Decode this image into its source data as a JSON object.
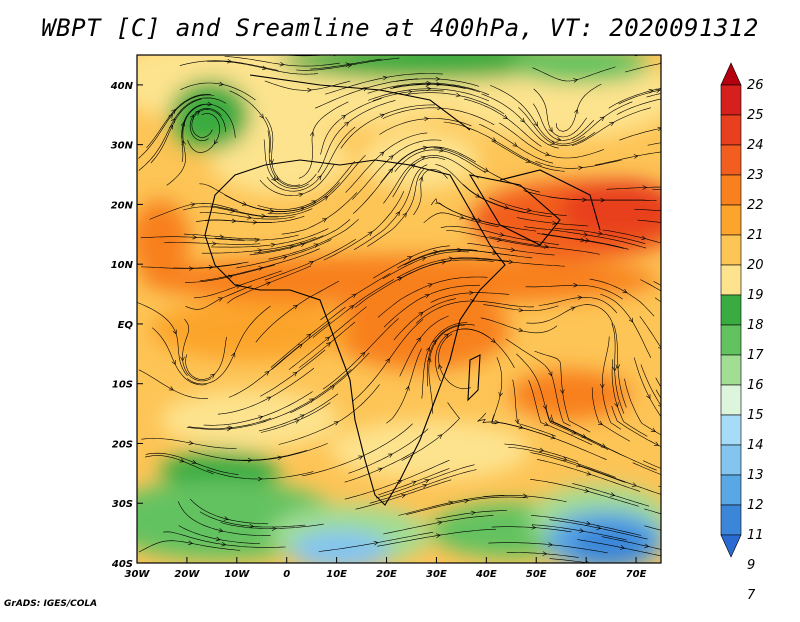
{
  "title": "WBPT [C] and Sreamline at 400hPa, VT: 2020091312",
  "credit": "GrADS: IGES/COLA",
  "map": {
    "lon_labels": [
      "30W",
      "20W",
      "10W",
      "0",
      "10E",
      "20E",
      "30E",
      "40E",
      "50E",
      "60E",
      "70E"
    ],
    "lat_labels": [
      "40N",
      "30N",
      "20N",
      "10N",
      "EQ",
      "10S",
      "20S",
      "30S",
      "40S"
    ],
    "lon_range": [
      -30,
      75
    ],
    "lat_range": [
      -40,
      45
    ]
  },
  "colorbar": {
    "labels": [
      "26",
      "25",
      "24",
      "23",
      "22",
      "21",
      "20",
      "19",
      "18",
      "17",
      "16",
      "15",
      "14",
      "13",
      "12",
      "11",
      "9",
      "7"
    ],
    "colors": [
      "#b4000f",
      "#d5201e",
      "#e8401f",
      "#f25e1f",
      "#f8801f",
      "#fca42c",
      "#fdc456",
      "#fde38e",
      "#3aab41",
      "#63c260",
      "#a1dd93",
      "#ddf5dc",
      "#a7dcf8",
      "#84c5f0",
      "#5aa7e6",
      "#3b86d8",
      "#2a6ad2"
    ]
  }
}
